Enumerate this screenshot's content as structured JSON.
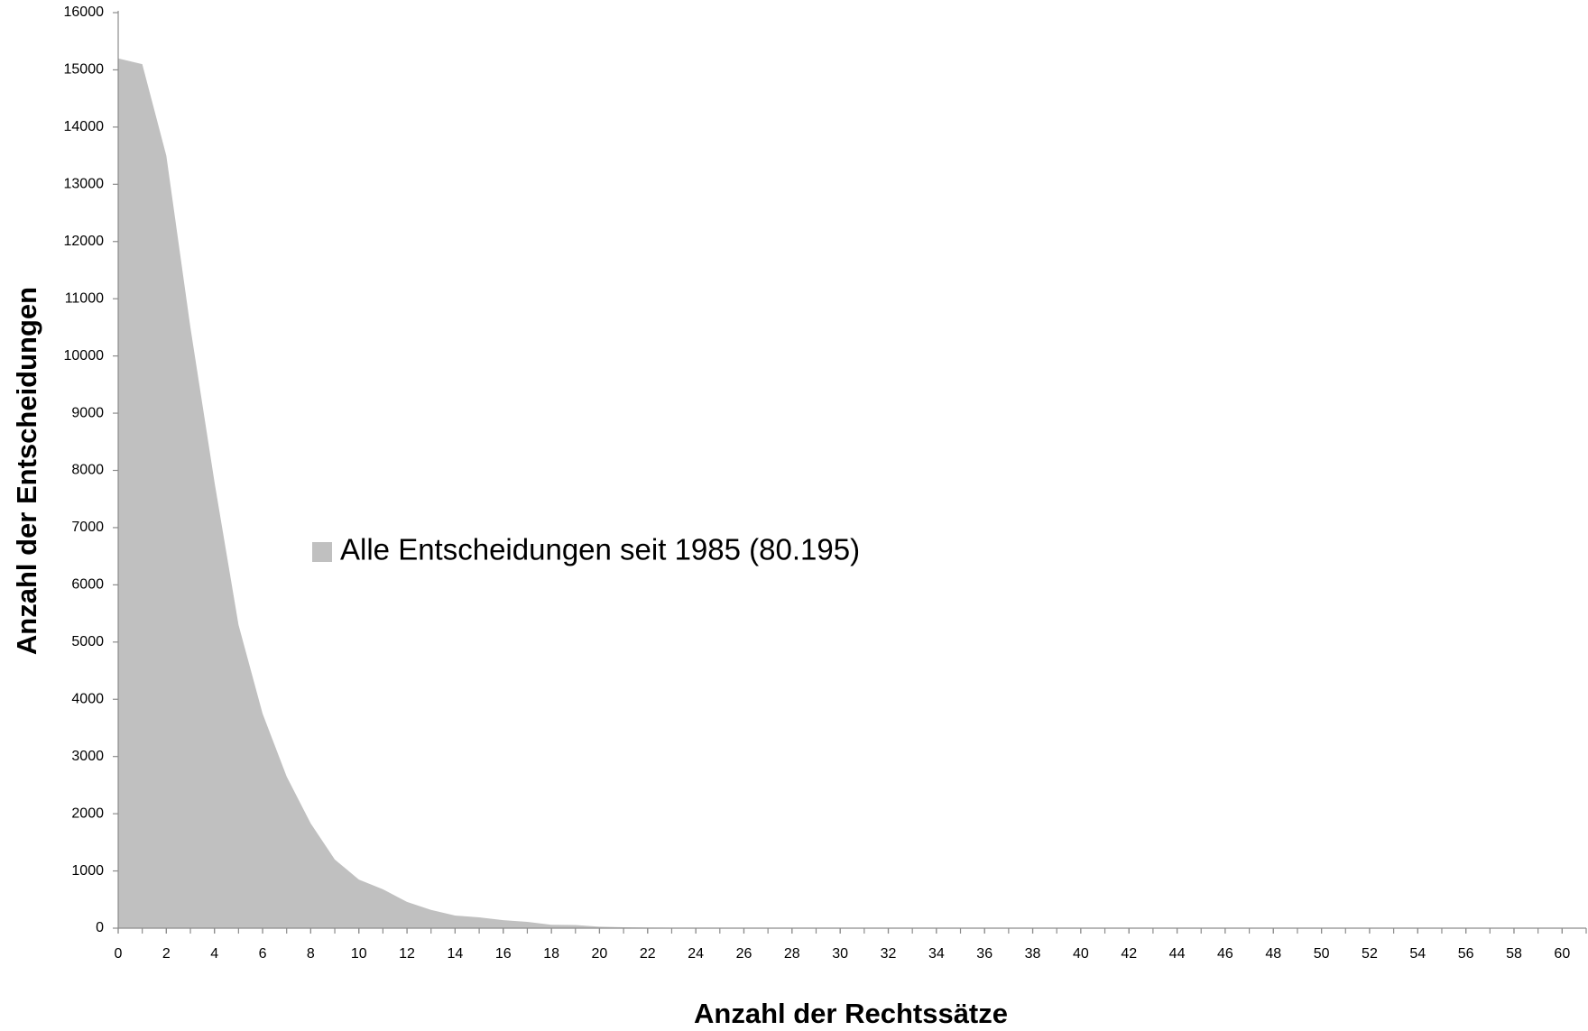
{
  "chart_data": {
    "type": "area",
    "x_label": "Anzahl der Rechtssätze",
    "y_label": "Anzahl der Entscheidungen",
    "x": [
      0,
      1,
      2,
      3,
      4,
      5,
      6,
      7,
      8,
      9,
      10,
      11,
      12,
      13,
      14,
      15,
      16,
      17,
      18,
      19,
      20,
      21,
      22,
      23,
      24,
      25,
      26,
      27,
      28,
      29,
      30,
      31,
      32,
      33,
      34,
      35,
      36,
      37,
      38,
      39,
      40,
      41,
      42,
      43,
      44,
      45,
      46,
      47,
      48,
      49,
      50,
      51,
      52,
      53,
      54,
      55,
      56,
      57,
      58,
      59,
      60,
      61
    ],
    "series": [
      {
        "name": "Alle Entscheidungen seit 1985 (80.195)",
        "color": "#c0c0c0",
        "values": [
          15200,
          15100,
          13500,
          10500,
          7800,
          5300,
          3750,
          2650,
          1830,
          1200,
          850,
          680,
          460,
          320,
          220,
          190,
          140,
          110,
          60,
          55,
          25,
          15,
          10,
          8,
          6,
          5,
          4,
          3,
          3,
          2,
          2,
          1,
          1,
          1,
          1,
          1,
          1,
          1,
          1,
          1,
          1,
          1,
          1,
          1,
          1,
          1,
          1,
          1,
          1,
          1,
          1,
          1,
          1,
          1,
          1,
          1,
          1,
          1,
          1,
          1,
          1,
          1
        ]
      }
    ],
    "xlim": [
      0,
      61
    ],
    "xticks": [
      0,
      2,
      4,
      6,
      8,
      10,
      12,
      14,
      16,
      18,
      20,
      22,
      24,
      26,
      28,
      30,
      32,
      34,
      36,
      38,
      40,
      42,
      44,
      46,
      48,
      50,
      52,
      54,
      56,
      58,
      60
    ],
    "ylim": [
      0,
      16000
    ],
    "yticks": [
      0,
      1000,
      2000,
      3000,
      4000,
      5000,
      6000,
      7000,
      8000,
      9000,
      10000,
      11000,
      12000,
      13000,
      14000,
      15000,
      16000
    ],
    "grid": false,
    "legend": "left"
  }
}
